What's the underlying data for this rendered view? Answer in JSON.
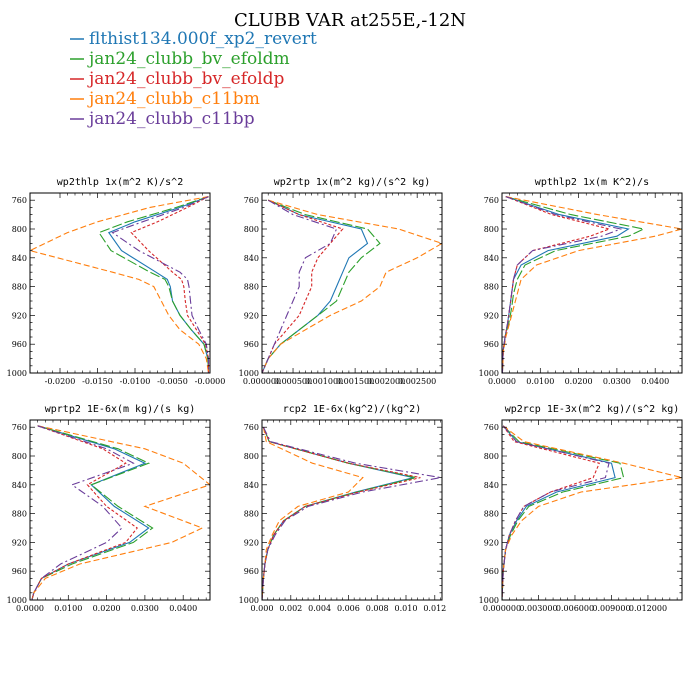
{
  "figure": {
    "title": "CLUBB VAR at255E,-12N",
    "colors": {
      "flthist134": "#1f77b4",
      "bv_efoldm": "#2ca02c",
      "bv_efoldp": "#d62728",
      "c11bm": "#ff7f0e",
      "c11bp": "#6a3d9a"
    }
  },
  "legend": [
    {
      "label": "flthist134.000f_xp2_revert",
      "color": "#1f77b4"
    },
    {
      "label": "jan24_clubb_bv_efoldm",
      "color": "#2ca02c"
    },
    {
      "label": "jan24_clubb_bv_efoldp",
      "color": "#d62728"
    },
    {
      "label": "jan24_clubb_c11bm",
      "color": "#ff7f0e"
    },
    {
      "label": "jan24_clubb_c11bp",
      "color": "#6a3d9a"
    }
  ],
  "chart_data": [
    {
      "type": "line",
      "title": "wp2thlp  1x(m^2 K)/s^2",
      "xlim": [
        -0.024,
        0.0
      ],
      "ylim": [
        1000,
        750
      ],
      "y_reversed": true,
      "yticks": [
        760,
        800,
        840,
        880,
        920,
        960,
        1000
      ],
      "xticks": [
        "-0.0200",
        "-0.0150",
        "-0.0100",
        "-0.0050",
        "-0.0000"
      ],
      "xtick_values": [
        -0.02,
        -0.015,
        -0.01,
        -0.005,
        0.0
      ],
      "y": [
        755,
        770,
        790,
        805,
        830,
        860,
        870,
        880,
        900,
        920,
        940,
        960,
        980,
        1000
      ],
      "series": [
        {
          "name": "flthist134.000f_xp2_revert",
          "color": "#1f77b4",
          "values": [
            -0.0002,
            -0.004,
            -0.01,
            -0.0135,
            -0.0118,
            -0.0072,
            -0.0057,
            -0.0053,
            -0.005,
            -0.004,
            -0.0025,
            -0.0008,
            -0.0003,
            -0.0002
          ]
        },
        {
          "name": "jan24_clubb_bv_efoldm",
          "color": "#2ca02c",
          "values": [
            -0.0002,
            -0.0045,
            -0.011,
            -0.0148,
            -0.0132,
            -0.008,
            -0.006,
            -0.0055,
            -0.005,
            -0.004,
            -0.0025,
            -0.0008,
            -0.0003,
            -0.0002
          ]
        },
        {
          "name": "jan24_clubb_bv_efoldp",
          "color": "#d62728",
          "values": [
            -0.0002,
            -0.003,
            -0.007,
            -0.0105,
            -0.0082,
            -0.005,
            -0.0038,
            -0.0035,
            -0.0033,
            -0.003,
            -0.0018,
            -0.0006,
            -0.0002,
            -0.0002
          ]
        },
        {
          "name": "jan24_clubb_c11bm",
          "color": "#ff7f0e",
          "values": [
            -0.0002,
            -0.008,
            -0.015,
            -0.019,
            -0.024,
            -0.013,
            -0.0095,
            -0.0075,
            -0.0065,
            -0.0055,
            -0.004,
            -0.0015,
            -0.0005,
            -0.0002
          ]
        },
        {
          "name": "jan24_clubb_c11bp",
          "color": "#6a3d9a",
          "values": [
            -0.0002,
            -0.0035,
            -0.009,
            -0.013,
            -0.0095,
            -0.004,
            -0.003,
            -0.0028,
            -0.0026,
            -0.0024,
            -0.0015,
            -0.0005,
            -0.0002,
            -0.0002
          ]
        }
      ]
    },
    {
      "type": "line",
      "title": "wp2rtp  1x(m^2 kg)/(s^2 kg)",
      "xlim": [
        0.0,
        0.0029
      ],
      "ylim": [
        1000,
        750
      ],
      "y_reversed": true,
      "yticks": [
        760,
        800,
        840,
        880,
        920,
        960,
        1000
      ],
      "xticks": [
        "0.000000",
        "0.000500",
        "0.001000",
        "0.001500",
        "0.002000",
        "0.002500"
      ],
      "xtick_values": [
        0.0,
        0.0005,
        0.001,
        0.0015,
        0.002,
        0.0025
      ],
      "y": [
        760,
        780,
        800,
        820,
        840,
        860,
        880,
        900,
        920,
        940,
        960,
        980,
        1000
      ],
      "series": [
        {
          "name": "flthist134.000f_xp2_revert",
          "color": "#1f77b4",
          "values": [
            0.0001,
            0.0006,
            0.0016,
            0.0017,
            0.0014,
            0.0013,
            0.0012,
            0.0011,
            0.0009,
            0.0006,
            0.0003,
            0.0001,
            0.0
          ]
        },
        {
          "name": "jan24_clubb_bv_efoldm",
          "color": "#2ca02c",
          "values": [
            0.0001,
            0.0007,
            0.0017,
            0.0019,
            0.0016,
            0.0014,
            0.0013,
            0.0012,
            0.0009,
            0.0006,
            0.0003,
            0.0001,
            0.0
          ]
        },
        {
          "name": "jan24_clubb_bv_efoldp",
          "color": "#d62728",
          "values": [
            0.0001,
            0.0006,
            0.0013,
            0.0011,
            0.0009,
            0.0008,
            0.0008,
            0.0007,
            0.0006,
            0.0004,
            0.0002,
            0.0001,
            0.0
          ]
        },
        {
          "name": "jan24_clubb_c11bm",
          "color": "#ff7f0e",
          "values": [
            0.0001,
            0.0009,
            0.0022,
            0.0029,
            0.0025,
            0.002,
            0.0019,
            0.0016,
            0.0011,
            0.0007,
            0.0003,
            0.0001,
            0.0
          ]
        },
        {
          "name": "jan24_clubb_c11bp",
          "color": "#6a3d9a",
          "values": [
            0.0001,
            0.0005,
            0.0012,
            0.0011,
            0.0007,
            0.0006,
            0.0006,
            0.0005,
            0.0004,
            0.0003,
            0.0002,
            0.0001,
            0.0
          ]
        }
      ]
    },
    {
      "type": "line",
      "title": "wpthlp2  1x(m K^2)/s",
      "xlim": [
        0.0,
        0.047
      ],
      "ylim": [
        1000,
        750
      ],
      "y_reversed": true,
      "yticks": [
        760,
        800,
        840,
        880,
        920,
        960,
        1000
      ],
      "xticks": [
        "0.0000",
        "0.0100",
        "0.0200",
        "0.0300",
        "0.0400"
      ],
      "xtick_values": [
        0.0,
        0.01,
        0.02,
        0.03,
        0.04
      ],
      "y": [
        755,
        780,
        800,
        810,
        830,
        850,
        870,
        890,
        910,
        930,
        950,
        970,
        1000
      ],
      "series": [
        {
          "name": "flthist134.000f_xp2_revert",
          "color": "#1f77b4",
          "values": [
            0.001,
            0.015,
            0.033,
            0.03,
            0.012,
            0.005,
            0.003,
            0.0025,
            0.002,
            0.0015,
            0.0008,
            0.0003,
            0.0001
          ]
        },
        {
          "name": "jan24_clubb_bv_efoldm",
          "color": "#2ca02c",
          "values": [
            0.001,
            0.018,
            0.037,
            0.033,
            0.014,
            0.006,
            0.004,
            0.003,
            0.0025,
            0.0018,
            0.0008,
            0.0003,
            0.0001
          ]
        },
        {
          "name": "jan24_clubb_bv_efoldp",
          "color": "#d62728",
          "values": [
            0.001,
            0.013,
            0.028,
            0.023,
            0.008,
            0.004,
            0.003,
            0.0025,
            0.002,
            0.0015,
            0.0008,
            0.0003,
            0.0001
          ]
        },
        {
          "name": "jan24_clubb_c11bm",
          "color": "#ff7f0e",
          "values": [
            0.001,
            0.025,
            0.047,
            0.04,
            0.02,
            0.009,
            0.005,
            0.004,
            0.003,
            0.002,
            0.001,
            0.0004,
            0.0001
          ]
        },
        {
          "name": "jan24_clubb_c11bp",
          "color": "#6a3d9a",
          "values": [
            0.001,
            0.014,
            0.031,
            0.026,
            0.008,
            0.004,
            0.003,
            0.0025,
            0.002,
            0.0015,
            0.0008,
            0.0003,
            0.0001
          ]
        }
      ]
    },
    {
      "type": "line",
      "title": "wprtp2  1E-6x(m kg)/(s kg)",
      "xlim": [
        0.0,
        0.047
      ],
      "ylim": [
        1000,
        750
      ],
      "y_reversed": true,
      "yticks": [
        760,
        800,
        840,
        880,
        920,
        960,
        1000
      ],
      "xticks": [
        "0.0000",
        "0.0100",
        "0.0200",
        "0.0300",
        "0.0400"
      ],
      "xtick_values": [
        0.0,
        0.01,
        0.02,
        0.03,
        0.04
      ],
      "y": [
        758,
        790,
        810,
        840,
        870,
        900,
        920,
        950,
        970,
        990,
        1000
      ],
      "series": [
        {
          "name": "flthist134.000f_xp2_revert",
          "color": "#1f77b4",
          "values": [
            0.002,
            0.022,
            0.03,
            0.016,
            0.022,
            0.031,
            0.026,
            0.01,
            0.003,
            0.001,
            0.0005
          ]
        },
        {
          "name": "jan24_clubb_bv_efoldm",
          "color": "#2ca02c",
          "values": [
            0.002,
            0.023,
            0.031,
            0.016,
            0.023,
            0.032,
            0.027,
            0.011,
            0.003,
            0.001,
            0.0005
          ]
        },
        {
          "name": "jan24_clubb_bv_efoldp",
          "color": "#d62728",
          "values": [
            0.002,
            0.019,
            0.025,
            0.015,
            0.02,
            0.028,
            0.025,
            0.01,
            0.003,
            0.001,
            0.0005
          ]
        },
        {
          "name": "jan24_clubb_c11bm",
          "color": "#ff7f0e",
          "values": [
            0.002,
            0.03,
            0.04,
            0.047,
            0.03,
            0.045,
            0.037,
            0.013,
            0.004,
            0.001,
            0.0005
          ]
        },
        {
          "name": "jan24_clubb_c11bp",
          "color": "#6a3d9a",
          "values": [
            0.002,
            0.02,
            0.027,
            0.011,
            0.019,
            0.024,
            0.02,
            0.008,
            0.003,
            0.001,
            0.0005
          ]
        }
      ]
    },
    {
      "type": "line",
      "title": "rcp2  1E-6x(kg^2)/(kg^2)",
      "xlim": [
        0.0,
        0.0125
      ],
      "ylim": [
        1000,
        750
      ],
      "y_reversed": true,
      "yticks": [
        760,
        800,
        840,
        880,
        920,
        960,
        1000
      ],
      "xticks": [
        "0.000",
        "0.002",
        "0.004",
        "0.006",
        "0.008",
        "0.010",
        "0.012"
      ],
      "xtick_values": [
        0.0,
        0.002,
        0.004,
        0.006,
        0.008,
        0.01,
        0.012
      ],
      "y": [
        760,
        780,
        810,
        830,
        850,
        870,
        890,
        910,
        930,
        950,
        970,
        1000
      ],
      "series": [
        {
          "name": "flthist134.000f_xp2_revert",
          "color": "#1f77b4",
          "values": [
            0.0001,
            0.0005,
            0.006,
            0.0105,
            0.0065,
            0.003,
            0.0015,
            0.0008,
            0.0004,
            0.0002,
            0.0001,
            0.0
          ]
        },
        {
          "name": "jan24_clubb_bv_efoldm",
          "color": "#2ca02c",
          "values": [
            0.0001,
            0.0005,
            0.006,
            0.0107,
            0.0066,
            0.003,
            0.0015,
            0.0008,
            0.0004,
            0.0002,
            0.0001,
            0.0
          ]
        },
        {
          "name": "jan24_clubb_bv_efoldp",
          "color": "#d62728",
          "values": [
            0.0001,
            0.0005,
            0.006,
            0.011,
            0.0067,
            0.003,
            0.0015,
            0.0008,
            0.0004,
            0.0002,
            0.0001,
            0.0
          ]
        },
        {
          "name": "jan24_clubb_c11bm",
          "color": "#ff7f0e",
          "values": [
            0.0001,
            0.0003,
            0.0035,
            0.007,
            0.006,
            0.0025,
            0.0012,
            0.0007,
            0.0003,
            0.0002,
            0.0001,
            0.0
          ]
        },
        {
          "name": "jan24_clubb_c11bp",
          "color": "#6a3d9a",
          "values": [
            0.0001,
            0.0006,
            0.0065,
            0.0124,
            0.007,
            0.0032,
            0.0016,
            0.0009,
            0.0004,
            0.0002,
            0.0001,
            0.0
          ]
        }
      ]
    },
    {
      "type": "line",
      "title": "wp2rcp  1E-3x(m^2 kg)/(s^2 kg)",
      "xlim": [
        0.0,
        0.0148
      ],
      "ylim": [
        1000,
        750
      ],
      "y_reversed": true,
      "yticks": [
        760,
        800,
        840,
        880,
        920,
        960,
        1000
      ],
      "xticks": [
        "0.000000",
        "0.003000",
        "0.006000",
        "0.009000",
        "0.012000"
      ],
      "xtick_values": [
        0.0,
        0.003,
        0.006,
        0.009,
        0.012
      ],
      "y": [
        758,
        780,
        810,
        830,
        850,
        870,
        890,
        910,
        930,
        960,
        1000
      ],
      "series": [
        {
          "name": "flthist134.000f_xp2_revert",
          "color": "#1f77b4",
          "values": [
            0.0001,
            0.0012,
            0.009,
            0.0093,
            0.0045,
            0.002,
            0.0012,
            0.0006,
            0.0003,
            0.0001,
            0.0
          ]
        },
        {
          "name": "jan24_clubb_bv_efoldm",
          "color": "#2ca02c",
          "values": [
            0.0001,
            0.0014,
            0.0097,
            0.01,
            0.005,
            0.0022,
            0.0013,
            0.0007,
            0.0003,
            0.0001,
            0.0
          ]
        },
        {
          "name": "jan24_clubb_bv_efoldp",
          "color": "#d62728",
          "values": [
            0.0001,
            0.001,
            0.008,
            0.0075,
            0.004,
            0.0018,
            0.0011,
            0.0006,
            0.0003,
            0.0001,
            0.0
          ]
        },
        {
          "name": "jan24_clubb_c11bm",
          "color": "#ff7f0e",
          "values": [
            0.0001,
            0.0018,
            0.01,
            0.0148,
            0.0065,
            0.003,
            0.0016,
            0.0008,
            0.0003,
            0.0001,
            0.0
          ]
        },
        {
          "name": "jan24_clubb_c11bp",
          "color": "#6a3d9a",
          "values": [
            0.0001,
            0.0012,
            0.0088,
            0.0085,
            0.004,
            0.0018,
            0.0011,
            0.0006,
            0.0003,
            0.0001,
            0.0
          ]
        }
      ]
    }
  ]
}
